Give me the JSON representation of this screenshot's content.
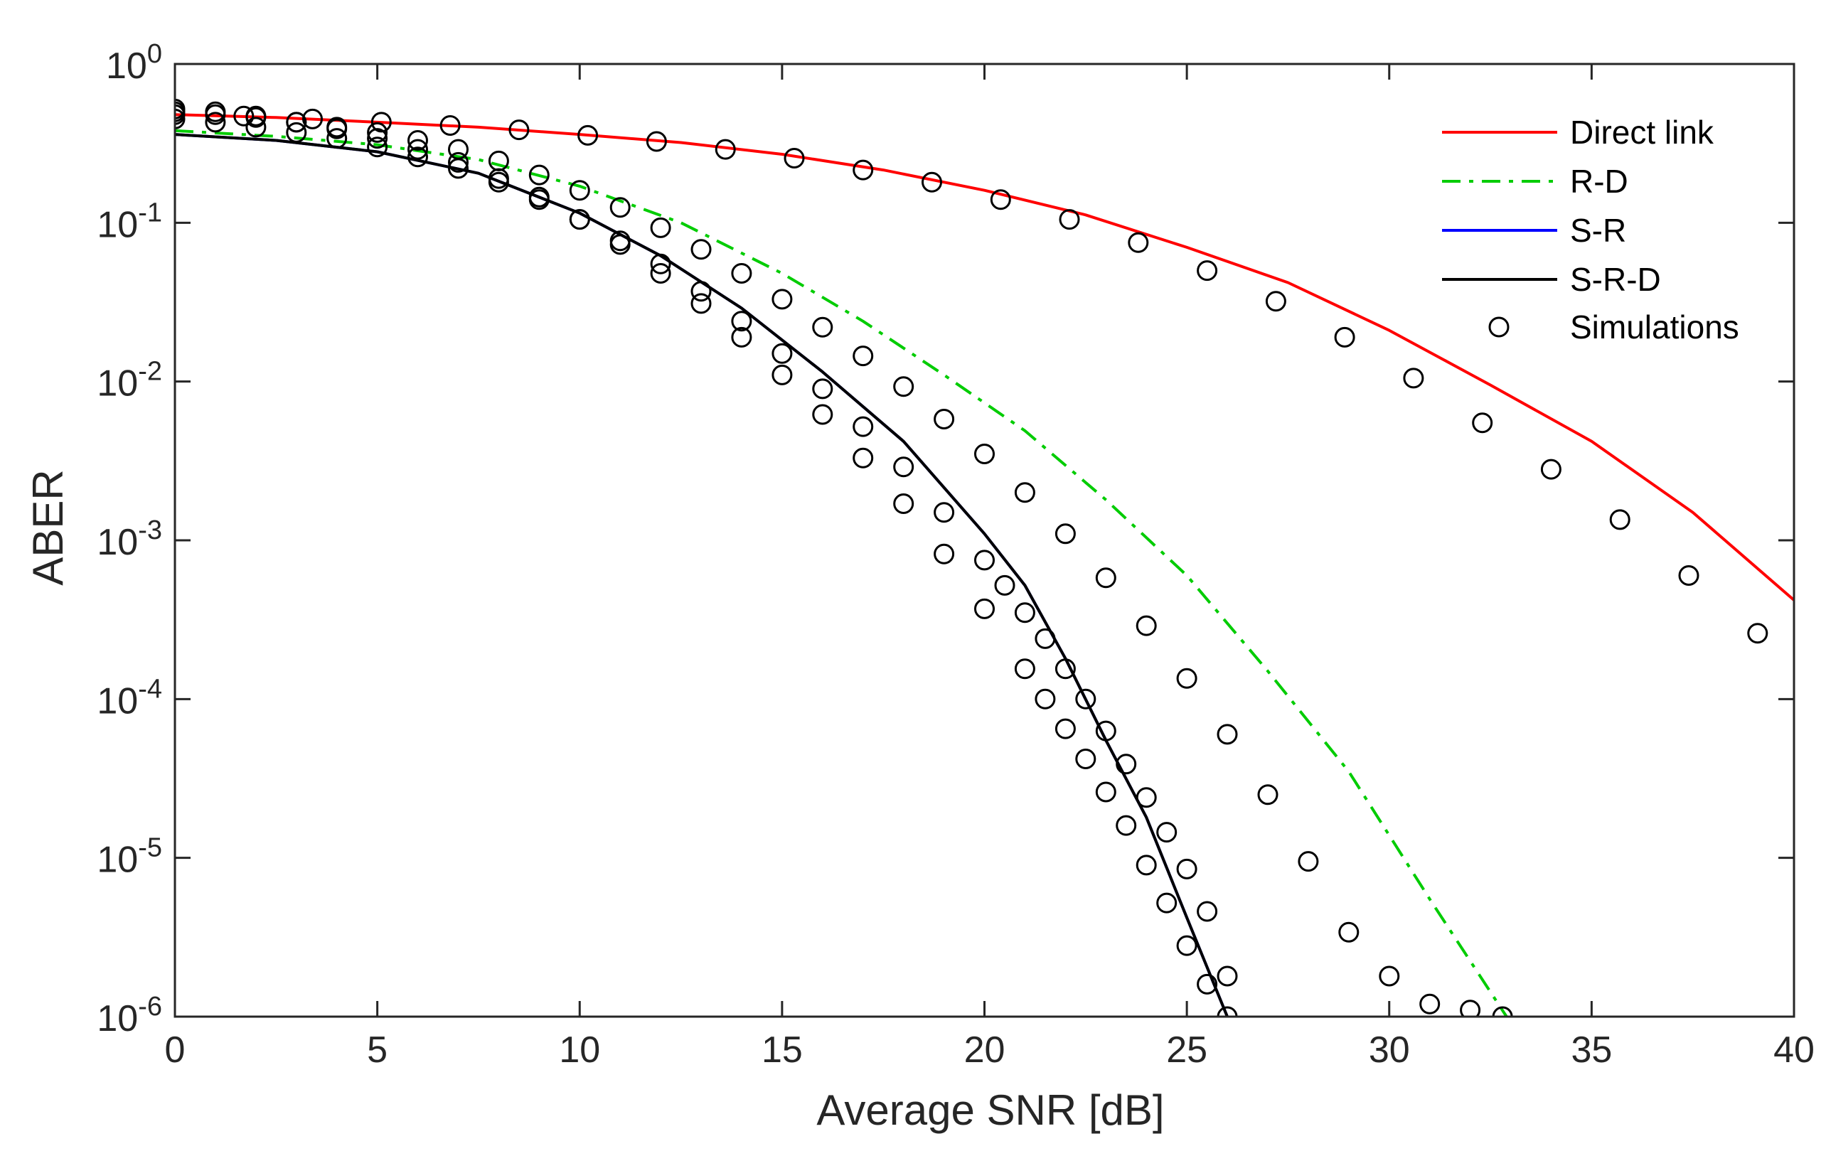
{
  "chart_data": {
    "type": "line",
    "title": "",
    "xlabel": "Average SNR [dB]",
    "ylabel": "ABER",
    "xscale": "linear",
    "yscale": "log",
    "xlim": [
      0,
      40
    ],
    "ylim": [
      1e-06,
      1
    ],
    "grid": false,
    "legend_position": "top-right",
    "x_ticks": [
      0,
      5,
      10,
      15,
      20,
      25,
      30,
      35,
      40
    ],
    "x_tick_labels": [
      "0",
      "5",
      "10",
      "15",
      "20",
      "25",
      "30",
      "35",
      "40"
    ],
    "y_ticks": [
      {
        "value": 1,
        "base": "10",
        "exp": "0"
      },
      {
        "value": 0.1,
        "base": "10",
        "exp": "-1"
      },
      {
        "value": 0.01,
        "base": "10",
        "exp": "-2"
      },
      {
        "value": 0.001,
        "base": "10",
        "exp": "-3"
      },
      {
        "value": 0.0001,
        "base": "10",
        "exp": "-4"
      },
      {
        "value": 1e-05,
        "base": "10",
        "exp": "-5"
      },
      {
        "value": 1e-06,
        "base": "10",
        "exp": "-6"
      }
    ],
    "series": [
      {
        "name": "Direct link",
        "color": "#ff0000",
        "style": "solid",
        "x": [
          0,
          2.5,
          5,
          7.5,
          10,
          12.5,
          15,
          17.5,
          20,
          22.5,
          25,
          27.5,
          30,
          32.5,
          35,
          37.5,
          40
        ],
        "y": [
          0.48,
          0.46,
          0.43,
          0.4,
          0.36,
          0.32,
          0.27,
          0.215,
          0.16,
          0.112,
          0.07,
          0.042,
          0.021,
          0.0095,
          0.0042,
          0.0015,
          0.00042
        ]
      },
      {
        "name": "R-D",
        "color": "#00cc00",
        "style": "dashdot",
        "x": [
          0,
          2.5,
          5,
          7.5,
          10,
          12.5,
          15,
          17,
          19,
          21,
          23,
          25,
          27,
          29,
          31,
          32.9
        ],
        "y": [
          0.38,
          0.35,
          0.31,
          0.25,
          0.17,
          0.1,
          0.048,
          0.024,
          0.011,
          0.0049,
          0.0018,
          0.0006,
          0.00015,
          3.5e-05,
          5.5e-06,
          1e-06
        ]
      },
      {
        "name": "S-R",
        "color": "#0000ff",
        "style": "solid",
        "x": [
          0,
          2.5,
          5,
          7.5,
          10,
          12,
          14,
          16,
          18,
          20,
          21,
          22,
          23,
          24,
          25,
          26
        ],
        "y": [
          0.36,
          0.33,
          0.28,
          0.205,
          0.115,
          0.062,
          0.029,
          0.0115,
          0.0042,
          0.0011,
          0.00052,
          0.00018,
          5.5e-05,
          1.8e-05,
          4.2e-06,
          1e-06
        ]
      },
      {
        "name": "S-R-D",
        "color": "#000000",
        "style": "solid",
        "x": [
          0,
          2.5,
          5,
          7.5,
          10,
          12,
          14,
          16,
          18,
          20,
          21,
          22,
          23,
          24,
          25,
          26
        ],
        "y": [
          0.36,
          0.33,
          0.28,
          0.205,
          0.115,
          0.062,
          0.029,
          0.0115,
          0.0042,
          0.0011,
          0.00052,
          0.00018,
          5.5e-05,
          1.8e-05,
          4.2e-06,
          1e-06
        ]
      },
      {
        "name": "Simulations",
        "color": "#000000",
        "style": "markers",
        "marker": "circle",
        "groups": [
          {
            "x": [
              0,
              1.7,
              3.4,
              5.1,
              6.8,
              8.5,
              10.2,
              11.9,
              13.6,
              15.3,
              17,
              18.7,
              20.4,
              22.1,
              23.8,
              25.5,
              27.2,
              28.9,
              30.6,
              32.3,
              34,
              35.7,
              37.4,
              39.1
            ],
            "y": [
              0.48,
              0.47,
              0.45,
              0.43,
              0.41,
              0.385,
              0.355,
              0.325,
              0.29,
              0.255,
              0.215,
              0.18,
              0.14,
              0.105,
              0.075,
              0.05,
              0.032,
              0.019,
              0.0105,
              0.0055,
              0.0028,
              0.00135,
              0.0006,
              0.00026
            ]
          },
          {
            "x": [
              0,
              1,
              2,
              3,
              4,
              5,
              6,
              7,
              8,
              9,
              10,
              11,
              12,
              13,
              14,
              15,
              16,
              17,
              18,
              19,
              20,
              21,
              22,
              23,
              24,
              25,
              26,
              27,
              28,
              29,
              30,
              31,
              32,
              32.8
            ],
            "y": [
              0.5,
              0.48,
              0.46,
              0.43,
              0.4,
              0.37,
              0.33,
              0.29,
              0.245,
              0.2,
              0.16,
              0.125,
              0.093,
              0.068,
              0.048,
              0.033,
              0.022,
              0.0145,
              0.0093,
              0.0058,
              0.0035,
              0.002,
              0.0011,
              0.00058,
              0.00029,
              0.000135,
              6e-05,
              2.5e-05,
              9.5e-06,
              3.4e-06,
              1.8e-06,
              1.2e-06,
              1.1e-06,
              1e-06
            ]
          },
          {
            "x": [
              0,
              1,
              2,
              3,
              4,
              5,
              6,
              7,
              8,
              9,
              10,
              11,
              12,
              13,
              14,
              15,
              16,
              17,
              18,
              19,
              20,
              21,
              21.5,
              22,
              22.5,
              23,
              23.5,
              24,
              24.5,
              25,
              25.5,
              26
            ],
            "y": [
              0.52,
              0.5,
              0.47,
              0.43,
              0.39,
              0.34,
              0.29,
              0.24,
              0.19,
              0.145,
              0.105,
              0.073,
              0.048,
              0.031,
              0.019,
              0.011,
              0.0062,
              0.0033,
              0.0017,
              0.00082,
              0.00037,
              0.000155,
              0.0001,
              6.5e-05,
              4.2e-05,
              2.6e-05,
              1.6e-05,
              9e-06,
              5.2e-06,
              2.8e-06,
              1.6e-06,
              1e-06
            ]
          },
          {
            "x": [
              0,
              1,
              2,
              3,
              4,
              5,
              6,
              7,
              8,
              9,
              10,
              11,
              12,
              13,
              14,
              15,
              16,
              17,
              18,
              19,
              20,
              20.5,
              21,
              21.5,
              22,
              22.5,
              23,
              23.5,
              24,
              24.5,
              25,
              25.5,
              26
            ],
            "y": [
              0.45,
              0.43,
              0.4,
              0.37,
              0.34,
              0.3,
              0.26,
              0.22,
              0.18,
              0.14,
              0.105,
              0.077,
              0.055,
              0.037,
              0.024,
              0.015,
              0.009,
              0.0052,
              0.0029,
              0.0015,
              0.00075,
              0.00052,
              0.00035,
              0.00024,
              0.000155,
              0.0001,
              6.3e-05,
              3.9e-05,
              2.4e-05,
              1.45e-05,
              8.5e-06,
              4.6e-06,
              1.8e-06
            ]
          }
        ]
      }
    ]
  }
}
